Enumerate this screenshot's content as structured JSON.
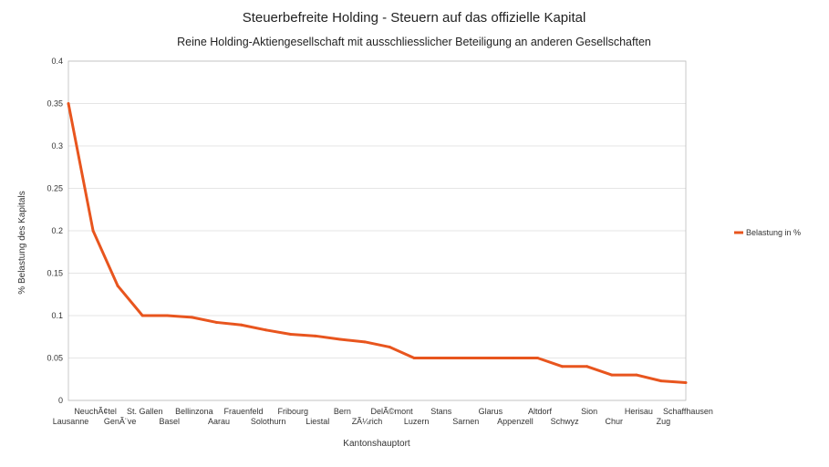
{
  "chart_data": {
    "type": "line",
    "title": "Steuerbefreite Holding - Steuern auf das offizielle Kapital",
    "subtitle": "Reine Holding-Aktiengesellschaft mit ausschliesslicher Beteiligung an anderen Gesellschaften",
    "xlabel": "Kantonshauptort",
    "ylabel": "% Belastung des Kapitals",
    "ylim": [
      0,
      0.4
    ],
    "yticks": [
      "0",
      "0.05",
      "0.1",
      "0.15",
      "0.2",
      "0.25",
      "0.3",
      "0.35",
      "0.4"
    ],
    "categories": [
      "Lausanne",
      "NeuchÃ¢tel",
      "GenÃ¨ve",
      "St. Gallen",
      "Basel",
      "Bellinzona",
      "Aarau",
      "Frauenfeld",
      "Solothurn",
      "Fribourg",
      "Liestal",
      "Bern",
      "ZÃ¼rich",
      "DelÃ©mont",
      "Luzern",
      "Stans",
      "Sarnen",
      "Glarus",
      "Appenzell",
      "Altdorf",
      "Schwyz",
      "Sion",
      "Chur",
      "Herisau",
      "Zug",
      "Schaffhausen"
    ],
    "series": [
      {
        "name": "Belastung in %",
        "color": "#e8551e",
        "values": [
          0.35,
          0.2,
          0.135,
          0.1,
          0.1,
          0.098,
          0.092,
          0.089,
          0.083,
          0.078,
          0.076,
          0.072,
          0.069,
          0.063,
          0.05,
          0.05,
          0.05,
          0.05,
          0.05,
          0.05,
          0.04,
          0.04,
          0.03,
          0.03,
          0.023,
          0.021
        ]
      }
    ],
    "grid": true,
    "legend": "right"
  }
}
